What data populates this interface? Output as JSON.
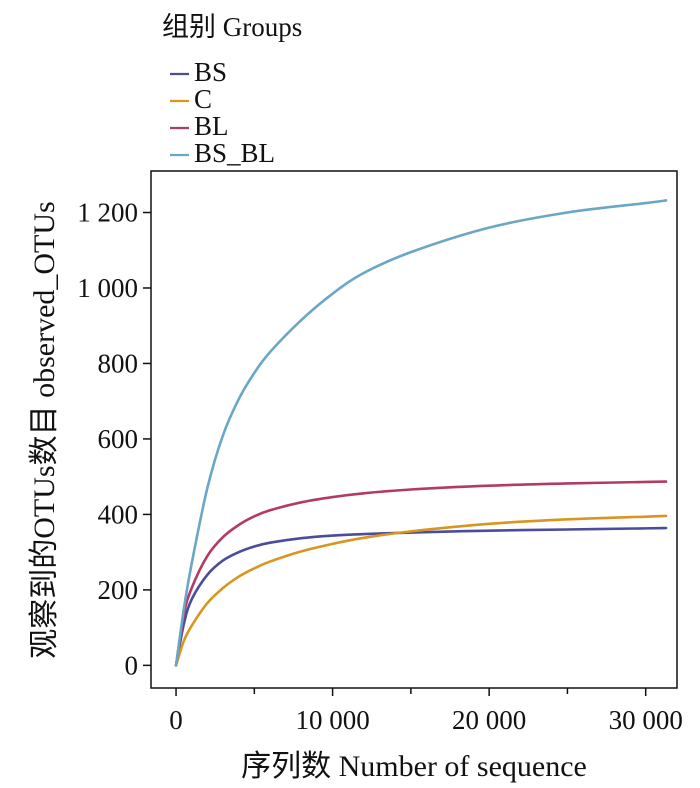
{
  "chart_data": {
    "type": "line",
    "title": "",
    "xlabel": "序列数  Number of sequence",
    "ylabel": "观察到的OTUs数目  observed_OTUs",
    "xlim": [
      -1600,
      32000
    ],
    "ylim": [
      -60,
      1310
    ],
    "x_ticks": [
      0,
      10000,
      20000,
      30000
    ],
    "x_tick_labels": [
      "0",
      "10 000",
      "20 000",
      "30 000"
    ],
    "x_minor_ticks": [
      5000,
      15000,
      25000
    ],
    "y_ticks": [
      0,
      200,
      400,
      600,
      800,
      1000,
      1200
    ],
    "y_tick_labels": [
      "0",
      "200",
      "400",
      "600",
      "800",
      "1 000",
      "1 200"
    ],
    "legend": {
      "title": "组别 Groups",
      "placement": "top-left, above plot"
    },
    "grid": false,
    "series": [
      {
        "name": "BS",
        "color": "#4a4c9c",
        "x": [
          0,
          500,
          1000,
          2000,
          3000,
          4000,
          5000,
          6000,
          8000,
          10000,
          12000,
          15000,
          20000,
          25000,
          30000,
          31300
        ],
        "y": [
          0,
          110,
          175,
          240,
          278,
          300,
          315,
          325,
          337,
          344,
          348,
          352,
          357,
          360,
          363,
          364
        ]
      },
      {
        "name": "C",
        "color": "#d9951f",
        "x": [
          0,
          500,
          1000,
          2000,
          3000,
          4000,
          5000,
          6000,
          8000,
          10000,
          12000,
          15000,
          20000,
          25000,
          30000,
          31300
        ],
        "y": [
          0,
          65,
          105,
          165,
          205,
          235,
          257,
          275,
          302,
          322,
          338,
          355,
          375,
          387,
          394,
          396
        ]
      },
      {
        "name": "BL",
        "color": "#b33b63",
        "x": [
          0,
          500,
          1000,
          2000,
          3000,
          4000,
          5000,
          6000,
          8000,
          10000,
          12000,
          15000,
          20000,
          25000,
          30000,
          31300
        ],
        "y": [
          0,
          135,
          205,
          290,
          340,
          372,
          395,
          411,
          432,
          446,
          456,
          466,
          476,
          482,
          486,
          487
        ]
      },
      {
        "name": "BS_BL",
        "color": "#6aa7c6",
        "x": [
          0,
          500,
          1000,
          2000,
          3000,
          4000,
          5000,
          6000,
          8000,
          10000,
          12000,
          15000,
          20000,
          25000,
          30000,
          31300
        ],
        "y": [
          0,
          150,
          270,
          470,
          610,
          705,
          775,
          830,
          915,
          985,
          1040,
          1095,
          1160,
          1200,
          1225,
          1232
        ]
      }
    ]
  }
}
